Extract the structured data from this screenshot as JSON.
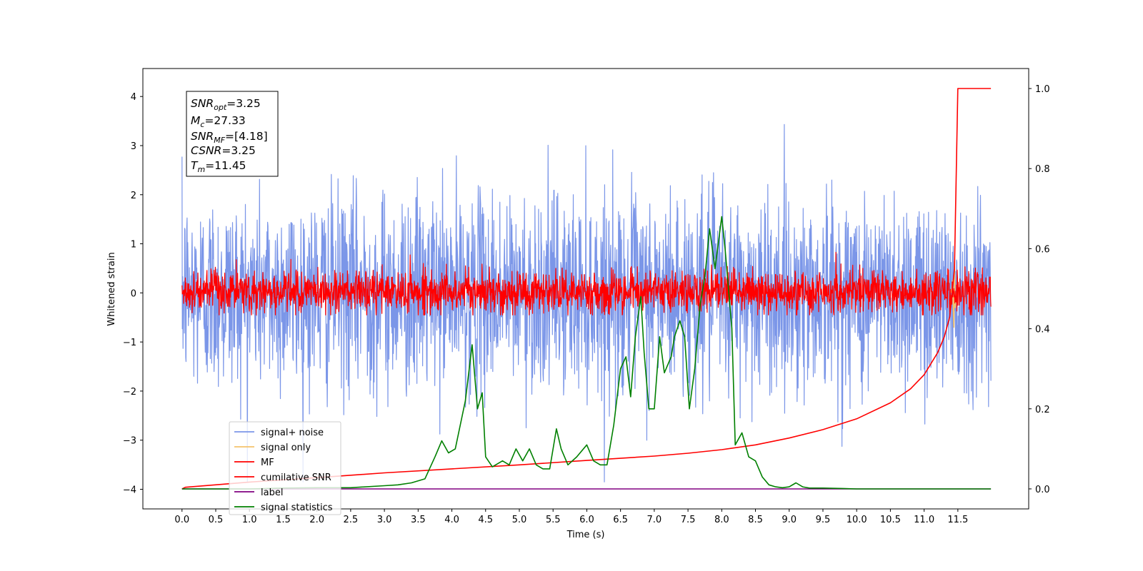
{
  "chart_data": {
    "type": "line",
    "xlabel": "Time (s)",
    "ylabel": "Whitened strain",
    "xlim": [
      -0.58,
      12.55
    ],
    "ylim_left": [
      -4.4,
      4.57
    ],
    "ylim_right": [
      -0.05,
      1.05
    ],
    "x_ticks": [
      0.0,
      0.5,
      1.0,
      1.5,
      2.0,
      2.5,
      3.0,
      3.5,
      4.0,
      4.5,
      5.0,
      5.5,
      6.0,
      6.5,
      7.0,
      7.5,
      8.0,
      8.5,
      9.0,
      9.5,
      10.0,
      10.5,
      11.0,
      11.5
    ],
    "x_tick_labels": [
      "0.0",
      "0.5",
      "1.0",
      "1.5",
      "2.0",
      "2.5",
      "3.0",
      "3.5",
      "4.0",
      "4.5",
      "5.0",
      "5.5",
      "6.0",
      "6.5",
      "7.0",
      "7.5",
      "8.0",
      "8.5",
      "9.0",
      "9.5",
      "10.0",
      "10.5",
      "11.0",
      "11.5"
    ],
    "y_ticks_left": [
      4,
      3,
      2,
      1,
      0,
      -1,
      -2,
      -3,
      -4
    ],
    "y_tick_labels_left": [
      "4",
      "3",
      "2",
      "1",
      "0",
      "−1",
      "−2",
      "−3",
      "−4"
    ],
    "y_ticks_right": [
      1.0,
      0.8,
      0.6,
      0.4,
      0.2,
      0.0
    ],
    "y_tick_labels_right": [
      "1.0",
      "0.8",
      "0.6",
      "0.4",
      "0.2",
      "0.0"
    ],
    "grid": false,
    "legend_position": "lower-left",
    "info_box": {
      "snr_opt": "=3.25",
      "mc": "=27.33",
      "snr_mf": "=[4.18]",
      "csnr": "=3.25",
      "tm": "=11.45"
    },
    "series": [
      {
        "name": "signal+ noise",
        "axis": "left",
        "color": "#7b96e8",
        "kind": "noise",
        "x_range": [
          0.0,
          11.99
        ],
        "typical_range": [
          -2.0,
          2.0
        ],
        "extreme_range": [
          -3.85,
          4.18
        ]
      },
      {
        "name": "signal only",
        "axis": "left",
        "color": "#f5c26b",
        "kind": "burst",
        "x": [
          11.4,
          11.42,
          11.44,
          11.45,
          11.46,
          11.48
        ],
        "y": [
          0.0,
          0.25,
          -0.7,
          0.65,
          -0.3,
          0.0
        ]
      },
      {
        "name": "MF",
        "axis": "left",
        "color": "#ff0000",
        "kind": "noise",
        "x_range": [
          0.0,
          11.99
        ],
        "typical_range": [
          -0.4,
          0.45
        ],
        "extreme_range": [
          -0.45,
          0.97
        ]
      },
      {
        "name": "cumilative SNR",
        "axis": "right",
        "color": "#ff0000",
        "x": [
          0.0,
          0.05,
          1.0,
          2.0,
          3.0,
          4.0,
          5.0,
          6.0,
          7.0,
          7.5,
          8.0,
          8.5,
          9.0,
          9.5,
          10.0,
          10.5,
          10.8,
          11.0,
          11.2,
          11.3,
          11.38,
          11.45,
          11.5,
          11.99
        ],
        "y": [
          0.0,
          0.004,
          0.017,
          0.028,
          0.04,
          0.05,
          0.06,
          0.071,
          0.082,
          0.089,
          0.098,
          0.11,
          0.127,
          0.148,
          0.175,
          0.215,
          0.25,
          0.285,
          0.34,
          0.38,
          0.43,
          0.55,
          1.0,
          1.0
        ]
      },
      {
        "name": "label",
        "axis": "right",
        "color": "#800080",
        "x": [
          0.0,
          11.99
        ],
        "y": [
          0.0,
          0.0
        ]
      },
      {
        "name": "signal statistics",
        "axis": "right",
        "color": "#008000",
        "x": [
          0.0,
          0.5,
          1.0,
          1.5,
          2.0,
          2.5,
          3.0,
          3.2,
          3.4,
          3.6,
          3.75,
          3.85,
          3.95,
          4.05,
          4.15,
          4.2,
          4.3,
          4.38,
          4.45,
          4.5,
          4.6,
          4.75,
          4.85,
          4.95,
          5.05,
          5.15,
          5.25,
          5.35,
          5.45,
          5.55,
          5.62,
          5.72,
          5.85,
          6.0,
          6.1,
          6.2,
          6.3,
          6.4,
          6.5,
          6.58,
          6.65,
          6.72,
          6.8,
          6.85,
          6.92,
          7.0,
          7.08,
          7.15,
          7.25,
          7.3,
          7.38,
          7.45,
          7.52,
          7.6,
          7.68,
          7.75,
          7.82,
          7.9,
          8.0,
          8.05,
          8.1,
          8.15,
          8.2,
          8.3,
          8.4,
          8.5,
          8.6,
          8.7,
          8.8,
          8.9,
          9.0,
          9.1,
          9.2,
          9.3,
          9.5,
          9.8,
          10.0,
          11.0,
          11.99
        ],
        "y": [
          0.0,
          0.0,
          0.0,
          0.002,
          0.003,
          0.003,
          0.008,
          0.01,
          0.015,
          0.025,
          0.08,
          0.12,
          0.09,
          0.1,
          0.18,
          0.22,
          0.36,
          0.2,
          0.24,
          0.08,
          0.055,
          0.07,
          0.06,
          0.1,
          0.07,
          0.1,
          0.06,
          0.05,
          0.05,
          0.15,
          0.1,
          0.06,
          0.08,
          0.11,
          0.07,
          0.06,
          0.06,
          0.16,
          0.3,
          0.33,
          0.23,
          0.38,
          0.48,
          0.34,
          0.2,
          0.2,
          0.38,
          0.29,
          0.33,
          0.38,
          0.42,
          0.38,
          0.2,
          0.3,
          0.46,
          0.53,
          0.65,
          0.55,
          0.68,
          0.6,
          0.5,
          0.4,
          0.11,
          0.14,
          0.08,
          0.07,
          0.03,
          0.01,
          0.005,
          0.003,
          0.005,
          0.015,
          0.005,
          0.002,
          0.002,
          0.001,
          0.0,
          0.0,
          0.0
        ]
      }
    ]
  }
}
